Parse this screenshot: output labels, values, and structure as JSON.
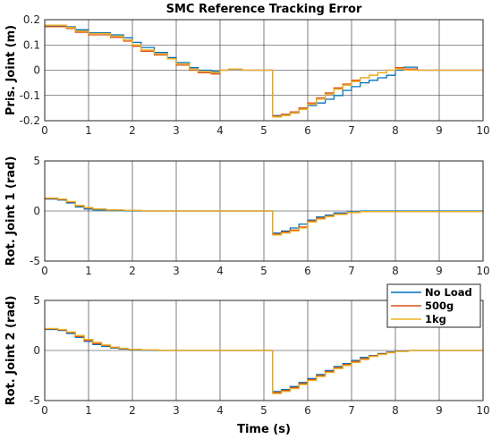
{
  "title": "SMC Reference Tracking Error",
  "xlabel": "Time (s)",
  "colors": {
    "No Load": "#0072BD",
    "500g": "#D95319",
    "1kg": "#EDB120"
  },
  "legend": {
    "position": "bottom-subplot-top-right",
    "entries": [
      "No Load",
      "500g",
      "1kg"
    ]
  },
  "chart_data": [
    {
      "type": "line",
      "ylabel": "Pris. Joint (m)",
      "xlim": [
        0,
        10
      ],
      "ylim": [
        -0.2,
        0.2
      ],
      "xticks": [
        "0",
        "1",
        "2",
        "3",
        "4",
        "5",
        "6",
        "7",
        "8",
        "9",
        "10"
      ],
      "yticks": [
        "-0.2",
        "-0.1",
        "0",
        "0.1",
        "0.2"
      ],
      "ytick_values": [
        -0.2,
        -0.1,
        0,
        0.1,
        0.2
      ],
      "grid": true,
      "step": true,
      "series": [
        {
          "name": "No Load",
          "x": [
            0,
            0.5,
            0.7,
            1.0,
            1.5,
            1.8,
            2.0,
            2.2,
            2.5,
            2.8,
            3.0,
            3.3,
            3.5,
            3.8,
            4.0,
            4.2,
            4.5,
            5.2,
            5.4,
            5.6,
            5.8,
            6.0,
            6.2,
            6.4,
            6.6,
            6.8,
            7.0,
            7.2,
            7.4,
            7.6,
            7.8,
            8.0,
            8.2,
            8.5,
            10
          ],
          "y": [
            0.175,
            0.172,
            0.16,
            0.148,
            0.14,
            0.128,
            0.11,
            0.09,
            0.07,
            0.05,
            0.03,
            0.01,
            0.0,
            -0.005,
            0.0,
            0.005,
            0.0,
            -0.18,
            -0.175,
            -0.17,
            -0.15,
            -0.14,
            -0.13,
            -0.115,
            -0.1,
            -0.08,
            -0.065,
            -0.05,
            -0.04,
            -0.03,
            -0.02,
            0.0,
            0.012,
            0.0,
            0.0
          ]
        },
        {
          "name": "500g",
          "x": [
            0,
            0.5,
            0.7,
            1.0,
            1.5,
            1.8,
            2.0,
            2.2,
            2.5,
            2.8,
            3.0,
            3.3,
            3.5,
            3.8,
            4.0,
            4.2,
            4.5,
            5.2,
            5.4,
            5.6,
            5.8,
            6.0,
            6.2,
            6.4,
            6.6,
            6.8,
            7.0,
            7.2,
            7.4,
            7.6,
            7.8,
            8.0,
            8.2,
            8.5,
            10
          ],
          "y": [
            0.172,
            0.165,
            0.15,
            0.14,
            0.13,
            0.115,
            0.095,
            0.075,
            0.06,
            0.045,
            0.02,
            0.0,
            -0.01,
            -0.015,
            0.0,
            0.005,
            0.0,
            -0.182,
            -0.175,
            -0.165,
            -0.15,
            -0.13,
            -0.11,
            -0.09,
            -0.07,
            -0.055,
            -0.04,
            -0.03,
            -0.02,
            -0.01,
            0.0,
            0.01,
            0.005,
            0.0,
            0.0
          ]
        },
        {
          "name": "1kg",
          "x": [
            0,
            0.5,
            0.7,
            1.0,
            1.5,
            1.8,
            2.0,
            2.2,
            2.5,
            2.8,
            3.0,
            3.3,
            3.5,
            3.8,
            4.0,
            4.2,
            4.5,
            5.2,
            5.4,
            5.6,
            5.8,
            6.0,
            6.2,
            6.4,
            6.6,
            6.8,
            7.0,
            7.2,
            7.4,
            7.6,
            7.8,
            8.0,
            8.2,
            8.5,
            10
          ],
          "y": [
            0.178,
            0.17,
            0.155,
            0.145,
            0.135,
            0.12,
            0.1,
            0.08,
            0.065,
            0.045,
            0.025,
            0.005,
            -0.005,
            -0.01,
            0.0,
            0.005,
            0.0,
            -0.185,
            -0.18,
            -0.17,
            -0.155,
            -0.135,
            -0.115,
            -0.095,
            -0.075,
            -0.06,
            -0.045,
            -0.03,
            -0.02,
            -0.01,
            0.0,
            0.005,
            0.0,
            0.0,
            0.0
          ]
        }
      ]
    },
    {
      "type": "line",
      "ylabel": "Rot. Joint 1 (rad)",
      "xlim": [
        0,
        10
      ],
      "ylim": [
        -5,
        5
      ],
      "xticks": [
        "0",
        "1",
        "2",
        "3",
        "4",
        "5",
        "6",
        "7",
        "8",
        "9",
        "10"
      ],
      "yticks": [
        "-5",
        "0",
        "5"
      ],
      "ytick_values": [
        -5,
        0,
        5
      ],
      "grid": true,
      "step": true,
      "series": [
        {
          "name": "No Load",
          "x": [
            0,
            0.3,
            0.5,
            0.7,
            0.9,
            1.1,
            1.4,
            1.8,
            2.2,
            5.2,
            5.4,
            5.6,
            5.8,
            6.0,
            6.2,
            6.4,
            6.6,
            6.9,
            7.2,
            10
          ],
          "y": [
            1.2,
            1.1,
            0.8,
            0.4,
            0.2,
            0.1,
            0.05,
            0.02,
            0.0,
            -2.2,
            -2.0,
            -1.7,
            -1.3,
            -0.9,
            -0.6,
            -0.4,
            -0.2,
            -0.1,
            0.0,
            0.0
          ]
        },
        {
          "name": "500g",
          "x": [
            0,
            0.3,
            0.5,
            0.7,
            0.9,
            1.1,
            1.4,
            1.8,
            2.2,
            5.2,
            5.4,
            5.6,
            5.8,
            6.0,
            6.2,
            6.4,
            6.6,
            6.9,
            7.2,
            10
          ],
          "y": [
            1.25,
            1.15,
            0.9,
            0.5,
            0.3,
            0.2,
            0.1,
            0.05,
            0.0,
            -2.3,
            -2.1,
            -1.9,
            -1.6,
            -1.0,
            -0.7,
            -0.5,
            -0.3,
            -0.15,
            -0.05,
            0.0
          ]
        },
        {
          "name": "1kg",
          "x": [
            0,
            0.3,
            0.5,
            0.7,
            0.9,
            1.1,
            1.4,
            1.8,
            2.2,
            5.2,
            5.4,
            5.6,
            5.8,
            6.0,
            6.2,
            6.4,
            6.6,
            6.9,
            7.2,
            10
          ],
          "y": [
            1.3,
            1.2,
            0.95,
            0.55,
            0.35,
            0.2,
            0.1,
            0.05,
            0.0,
            -2.4,
            -2.2,
            -2.0,
            -1.7,
            -1.1,
            -0.8,
            -0.55,
            -0.35,
            -0.15,
            -0.05,
            0.0
          ]
        }
      ]
    },
    {
      "type": "line",
      "ylabel": "Rot. Joint 2 (rad)",
      "xlim": [
        0,
        10
      ],
      "ylim": [
        -5,
        5
      ],
      "xticks": [
        "0",
        "1",
        "2",
        "3",
        "4",
        "5",
        "6",
        "7",
        "8",
        "9",
        "10"
      ],
      "yticks": [
        "-5",
        "0",
        "5"
      ],
      "ytick_values": [
        -5,
        0,
        5
      ],
      "grid": true,
      "step": true,
      "series": [
        {
          "name": "No Load",
          "x": [
            0,
            0.3,
            0.5,
            0.7,
            0.9,
            1.1,
            1.3,
            1.5,
            1.7,
            1.9,
            2.2,
            2.6,
            5.2,
            5.4,
            5.6,
            5.8,
            6.0,
            6.2,
            6.4,
            6.6,
            6.8,
            7.0,
            7.2,
            7.4,
            7.6,
            7.8,
            8.0,
            8.3,
            10
          ],
          "y": [
            2.1,
            2.0,
            1.7,
            1.3,
            0.9,
            0.6,
            0.4,
            0.25,
            0.15,
            0.08,
            0.03,
            0.0,
            -4.1,
            -3.9,
            -3.6,
            -3.2,
            -2.8,
            -2.4,
            -2.0,
            -1.6,
            -1.3,
            -1.0,
            -0.7,
            -0.5,
            -0.3,
            -0.15,
            -0.05,
            0.0,
            0.0
          ]
        },
        {
          "name": "500g",
          "x": [
            0,
            0.3,
            0.5,
            0.7,
            0.9,
            1.1,
            1.3,
            1.5,
            1.7,
            1.9,
            2.2,
            2.6,
            5.2,
            5.4,
            5.6,
            5.8,
            6.0,
            6.2,
            6.4,
            6.6,
            6.8,
            7.0,
            7.2,
            7.4,
            7.6,
            7.8,
            8.0,
            8.3,
            10
          ],
          "y": [
            2.15,
            2.05,
            1.8,
            1.4,
            1.0,
            0.7,
            0.5,
            0.3,
            0.2,
            0.1,
            0.05,
            0.0,
            -4.2,
            -4.0,
            -3.7,
            -3.3,
            -2.9,
            -2.5,
            -2.1,
            -1.7,
            -1.4,
            -1.1,
            -0.8,
            -0.55,
            -0.35,
            -0.2,
            -0.08,
            0.0,
            0.0
          ]
        },
        {
          "name": "1kg",
          "x": [
            0,
            0.3,
            0.5,
            0.7,
            0.9,
            1.1,
            1.3,
            1.5,
            1.7,
            1.9,
            2.2,
            2.6,
            5.2,
            5.4,
            5.6,
            5.8,
            6.0,
            6.2,
            6.4,
            6.6,
            6.8,
            7.0,
            7.2,
            7.4,
            7.6,
            7.8,
            8.0,
            8.3,
            10
          ],
          "y": [
            2.2,
            2.1,
            1.85,
            1.5,
            1.1,
            0.8,
            0.55,
            0.35,
            0.22,
            0.12,
            0.05,
            0.0,
            -4.3,
            -4.1,
            -3.8,
            -3.4,
            -3.0,
            -2.6,
            -2.2,
            -1.8,
            -1.5,
            -1.2,
            -0.9,
            -0.6,
            -0.4,
            -0.22,
            -0.1,
            0.0,
            0.0
          ]
        }
      ]
    }
  ]
}
